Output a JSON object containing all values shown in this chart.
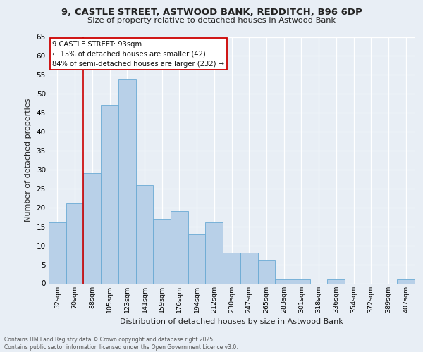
{
  "title_line1": "9, CASTLE STREET, ASTWOOD BANK, REDDITCH, B96 6DP",
  "title_line2": "Size of property relative to detached houses in Astwood Bank",
  "xlabel": "Distribution of detached houses by size in Astwood Bank",
  "ylabel": "Number of detached properties",
  "categories": [
    "52sqm",
    "70sqm",
    "88sqm",
    "105sqm",
    "123sqm",
    "141sqm",
    "159sqm",
    "176sqm",
    "194sqm",
    "212sqm",
    "230sqm",
    "247sqm",
    "265sqm",
    "283sqm",
    "301sqm",
    "318sqm",
    "336sqm",
    "354sqm",
    "372sqm",
    "389sqm",
    "407sqm"
  ],
  "values": [
    16,
    21,
    29,
    47,
    54,
    26,
    17,
    19,
    13,
    16,
    8,
    8,
    6,
    1,
    1,
    0,
    1,
    0,
    0,
    0,
    1
  ],
  "bar_color": "#b8d0e8",
  "bar_edge_color": "#6aaad4",
  "ylim": [
    0,
    65
  ],
  "yticks": [
    0,
    5,
    10,
    15,
    20,
    25,
    30,
    35,
    40,
    45,
    50,
    55,
    60,
    65
  ],
  "vline_color": "#cc0000",
  "vline_x": 1.5,
  "annotation_text": "9 CASTLE STREET: 93sqm\n← 15% of detached houses are smaller (42)\n84% of semi-detached houses are larger (232) →",
  "annotation_box_color": "#ffffff",
  "annotation_box_edge": "#cc0000",
  "footer_text": "Contains HM Land Registry data © Crown copyright and database right 2025.\nContains public sector information licensed under the Open Government Licence v3.0.",
  "background_color": "#e8eef5",
  "plot_bg_color": "#e8eef5",
  "grid_color": "#ffffff"
}
